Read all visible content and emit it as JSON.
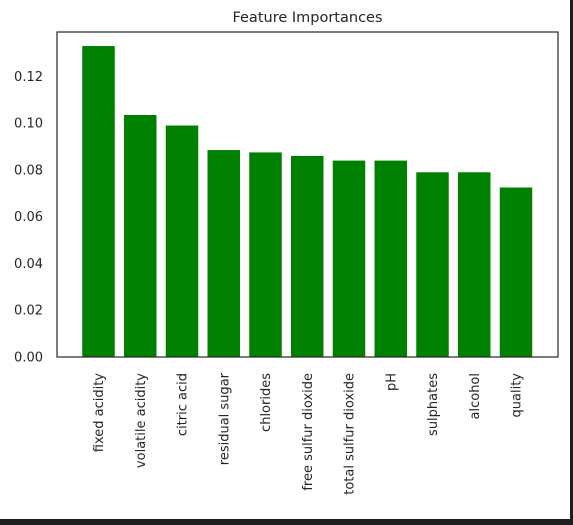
{
  "chart_data": {
    "type": "bar",
    "title": "Feature Importances",
    "xlabel": "",
    "ylabel": "",
    "categories": [
      "fixed acidity",
      "volatile acidity",
      "citric acid",
      "residual sugar",
      "chlorides",
      "free sulfur dioxide",
      "total sulfur dioxide",
      "pH",
      "sulphates",
      "alcohol",
      "quality"
    ],
    "values": [
      0.133,
      0.1035,
      0.099,
      0.0885,
      0.0875,
      0.086,
      0.084,
      0.084,
      0.079,
      0.079,
      0.0725
    ],
    "ylim": [
      0,
      0.139
    ],
    "yticks": [
      "0.00",
      "0.02",
      "0.04",
      "0.06",
      "0.08",
      "0.10",
      "0.12"
    ],
    "bar_color": "#008000",
    "grid": false,
    "legend": "none"
  }
}
